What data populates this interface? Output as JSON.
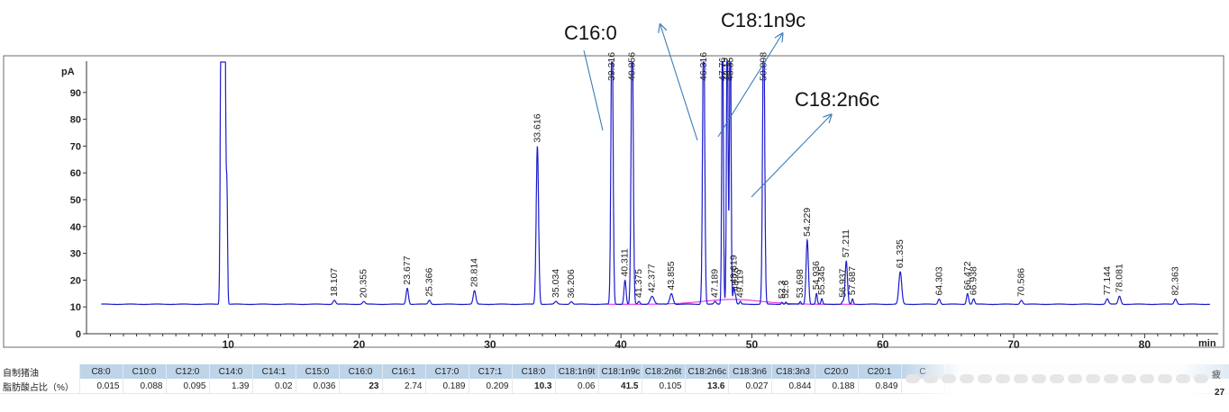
{
  "chart_data": {
    "type": "line",
    "y_axis_unit": "pA",
    "x_axis_unit": "min",
    "xlim": [
      0,
      85
    ],
    "ylim": [
      0,
      100
    ],
    "x_ticks": [
      10,
      20,
      30,
      40,
      50,
      60,
      70,
      80
    ],
    "y_ticks": [
      0,
      10,
      20,
      30,
      40,
      50,
      60,
      70,
      80,
      90
    ],
    "baseline": 11,
    "peaks": [
      {
        "rt": 9.45,
        "height": 120,
        "width": 0.06
      },
      {
        "rt": 9.6,
        "height": 120,
        "width": 0.06
      },
      {
        "rt": 9.75,
        "height": 120,
        "width": 0.06
      },
      {
        "rt": 9.9,
        "height": 53,
        "width": 0.05
      },
      {
        "rt": 18.107,
        "height": 12.5,
        "width": 0.1,
        "label": "18.107"
      },
      {
        "rt": 20.355,
        "height": 12,
        "width": 0.1,
        "label": "20.355"
      },
      {
        "rt": 23.677,
        "height": 17,
        "width": 0.09,
        "label": "23.677"
      },
      {
        "rt": 25.366,
        "height": 12.5,
        "width": 0.09,
        "label": "25.366"
      },
      {
        "rt": 28.814,
        "height": 16,
        "width": 0.1,
        "label": "28.814"
      },
      {
        "rt": 33.616,
        "height": 70,
        "width": 0.09,
        "label": "33.616"
      },
      {
        "rt": 35.034,
        "height": 12,
        "width": 0.1,
        "label": "35.034"
      },
      {
        "rt": 36.206,
        "height": 12,
        "width": 0.1,
        "label": "36.206"
      },
      {
        "rt": 39.316,
        "height": 120,
        "width": 0.08,
        "label": "39.316"
      },
      {
        "rt": 40.311,
        "height": 20,
        "width": 0.08,
        "label": "40.311"
      },
      {
        "rt": 40.856,
        "height": 120,
        "width": 0.08,
        "label": "40.856"
      },
      {
        "rt": 41.375,
        "height": 12,
        "width": 0.08,
        "label": "41.375"
      },
      {
        "rt": 42.377,
        "height": 14,
        "width": 0.15,
        "label": "42.377"
      },
      {
        "rt": 43.855,
        "height": 15,
        "width": 0.12,
        "label": "43.855"
      },
      {
        "rt": 46.316,
        "height": 120,
        "width": 0.08,
        "label": "46.316"
      },
      {
        "rt": 47.189,
        "height": 12,
        "width": 0.08,
        "label": "47.189"
      },
      {
        "rt": 47.76,
        "height": 120,
        "width": 0.06,
        "label": "47.76"
      },
      {
        "rt": 48.12,
        "height": 120,
        "width": 0.06,
        "label": "48.12"
      },
      {
        "rt": 48.35,
        "height": 120,
        "width": 0.06,
        "label": "48.35"
      },
      {
        "rt": 48.619,
        "height": 17,
        "width": 0.06,
        "label": "48.619"
      },
      {
        "rt": 48.75,
        "height": 14,
        "width": 0.06,
        "label": "48.75"
      },
      {
        "rt": 49.119,
        "height": 12,
        "width": 0.06,
        "label": "49.119"
      },
      {
        "rt": 50.898,
        "height": 120,
        "width": 0.08,
        "label": "50.898"
      },
      {
        "rt": 52.3,
        "height": 11.8,
        "width": 0.06,
        "label": "52.3"
      },
      {
        "rt": 52.6,
        "height": 11.8,
        "width": 0.06,
        "label": "52.6"
      },
      {
        "rt": 53.698,
        "height": 12,
        "width": 0.06,
        "label": "53.698"
      },
      {
        "rt": 54.229,
        "height": 35,
        "width": 0.09,
        "label": "54.229"
      },
      {
        "rt": 54.936,
        "height": 15,
        "width": 0.06,
        "label": "54.936"
      },
      {
        "rt": 55.345,
        "height": 13,
        "width": 0.06,
        "label": "55.345"
      },
      {
        "rt": 56.937,
        "height": 12,
        "width": 0.06,
        "label": "56.937"
      },
      {
        "rt": 57.211,
        "height": 27,
        "width": 0.09,
        "label": "57.211"
      },
      {
        "rt": 57.687,
        "height": 13,
        "width": 0.06,
        "label": "57.687"
      },
      {
        "rt": 61.335,
        "height": 23,
        "width": 0.11,
        "label": "61.335"
      },
      {
        "rt": 64.303,
        "height": 13,
        "width": 0.09,
        "label": "64.303"
      },
      {
        "rt": 66.472,
        "height": 15,
        "width": 0.08,
        "label": "66.472"
      },
      {
        "rt": 66.938,
        "height": 13,
        "width": 0.08,
        "label": "66.938"
      },
      {
        "rt": 70.586,
        "height": 12.5,
        "width": 0.1,
        "label": "70.586"
      },
      {
        "rt": 77.144,
        "height": 13,
        "width": 0.1,
        "label": "77.144"
      },
      {
        "rt": 78.081,
        "height": 14,
        "width": 0.1,
        "label": "78.081"
      },
      {
        "rt": 82.363,
        "height": 13,
        "width": 0.1,
        "label": "82.363"
      }
    ],
    "annotations": [
      {
        "text": "C16:0",
        "target_rt": 39.1,
        "target_y": 15
      },
      {
        "text": "C18:1n9c",
        "target_rt": 47.9,
        "target_y": 15
      },
      {
        "text": "C18:2n6c",
        "target_rt": 50.7,
        "target_y": 15
      }
    ],
    "line_color": "#1c1ccc",
    "baseline_color": "#e21be2",
    "arrow_color": "#3a7db8"
  },
  "table": {
    "header_row_label": "自制猪油",
    "value_row_label": "脂肪酸占比（%）",
    "columns": [
      "C8:0",
      "C10:0",
      "C12:0",
      "C14:0",
      "C14:1",
      "C15:0",
      "C16:0",
      "C16:1",
      "C17:0",
      "C17:1",
      "C18:0",
      "C18:1n9t",
      "C18:1n9c",
      "C18:2n6t",
      "C18:2n6c",
      "C18:3n6",
      "C18:3n3",
      "C20:0",
      "C20:1",
      "C"
    ],
    "values": [
      "0.015",
      "0.088",
      "0.095",
      "1.39",
      "0.02",
      "0.036",
      "23",
      "2.74",
      "0.189",
      "0.209",
      "10.3",
      "0.06",
      "41.5",
      "0.105",
      "13.6",
      "0.027",
      "0.844",
      "0.188",
      "0.849",
      ""
    ],
    "bold_columns": [
      "C16:0",
      "C18:0",
      "C18:1n9c",
      "C18:2n6c"
    ],
    "truncated_header_glyph": "疲",
    "truncated_value": "27"
  }
}
